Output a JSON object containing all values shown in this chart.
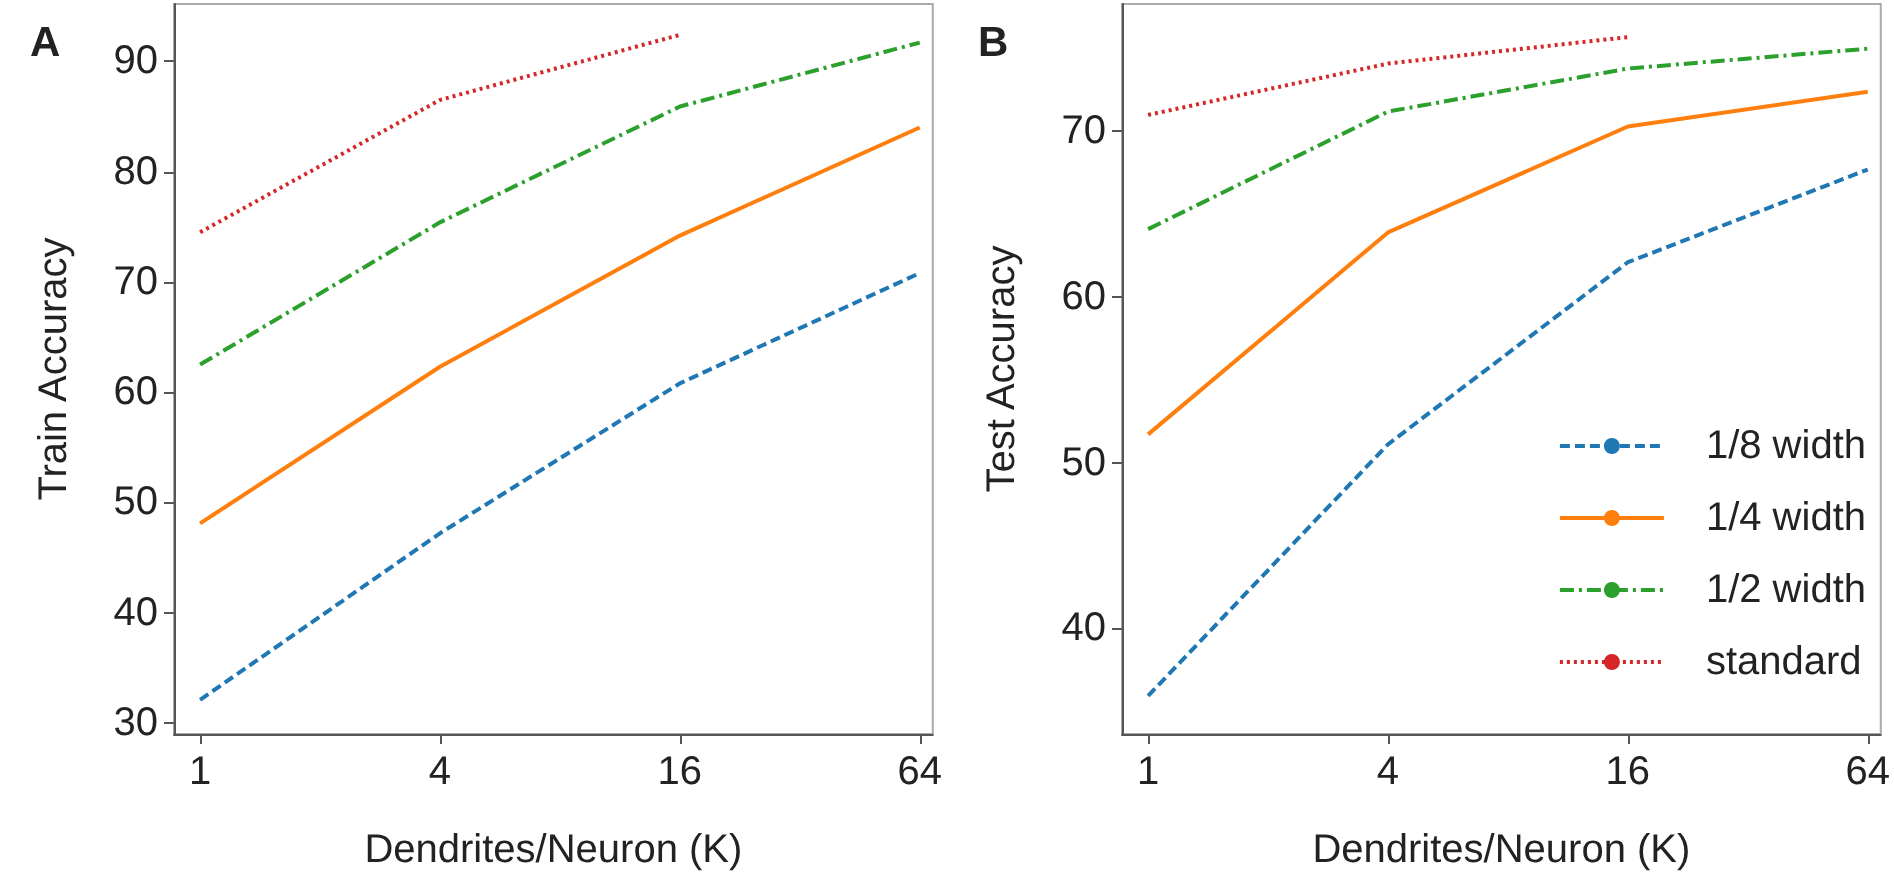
{
  "chart_data": [
    {
      "type": "line",
      "title": "A",
      "xlabel": "Dendrites/Neuron (K)",
      "ylabel": "Train Accuracy",
      "x": [
        1,
        4,
        16,
        64
      ],
      "log": "x",
      "xlim": [
        0.86,
        69
      ],
      "xticks": [
        1,
        4,
        16,
        64
      ],
      "ylim": [
        29,
        95.2
      ],
      "yticks": [
        30,
        40,
        50,
        60,
        70,
        80,
        90
      ],
      "grid": false,
      "legend": false,
      "marker": "none",
      "series": [
        {
          "color": "#1f77b4",
          "line_style": "dashed",
          "values": [
            32.1,
            47.2,
            60.8,
            70.8
          ]
        },
        {
          "color": "#ff7f0e",
          "line_style": "solid",
          "values": [
            48.1,
            62.3,
            74.2,
            84.0
          ]
        },
        {
          "color": "#2ca02c",
          "line_style": "dashdot",
          "values": [
            62.5,
            75.4,
            85.9,
            91.7
          ]
        },
        {
          "color": "#d62728",
          "line_style": "dotted",
          "values": [
            74.5,
            86.5,
            92.4,
            null
          ]
        }
      ]
    },
    {
      "type": "line",
      "title": "B",
      "xlabel": "Dendrites/Neuron (K)",
      "ylabel": "Test Accuracy",
      "x": [
        1,
        4,
        16,
        64
      ],
      "log": "x",
      "xlim": [
        0.86,
        69
      ],
      "xticks": [
        1,
        4,
        16,
        64
      ],
      "ylim": [
        33.6,
        77.7
      ],
      "yticks": [
        40,
        50,
        60,
        70
      ],
      "grid": false,
      "legend": "bottom right",
      "marker": "none",
      "series": [
        {
          "name": "1/8 width",
          "color": "#1f77b4",
          "line_style": "dashed",
          "values": [
            35.9,
            51.1,
            62.1,
            67.7
          ]
        },
        {
          "name": "1/4 width",
          "color": "#ff7f0e",
          "line_style": "solid",
          "values": [
            51.7,
            63.9,
            70.3,
            72.4
          ]
        },
        {
          "name": "1/2 width",
          "color": "#2ca02c",
          "line_style": "dashdot",
          "values": [
            64.1,
            71.2,
            73.8,
            75.0
          ]
        },
        {
          "name": "standard",
          "color": "#d62728",
          "line_style": "dotted",
          "values": [
            71.0,
            74.1,
            75.7,
            null
          ]
        }
      ]
    }
  ]
}
